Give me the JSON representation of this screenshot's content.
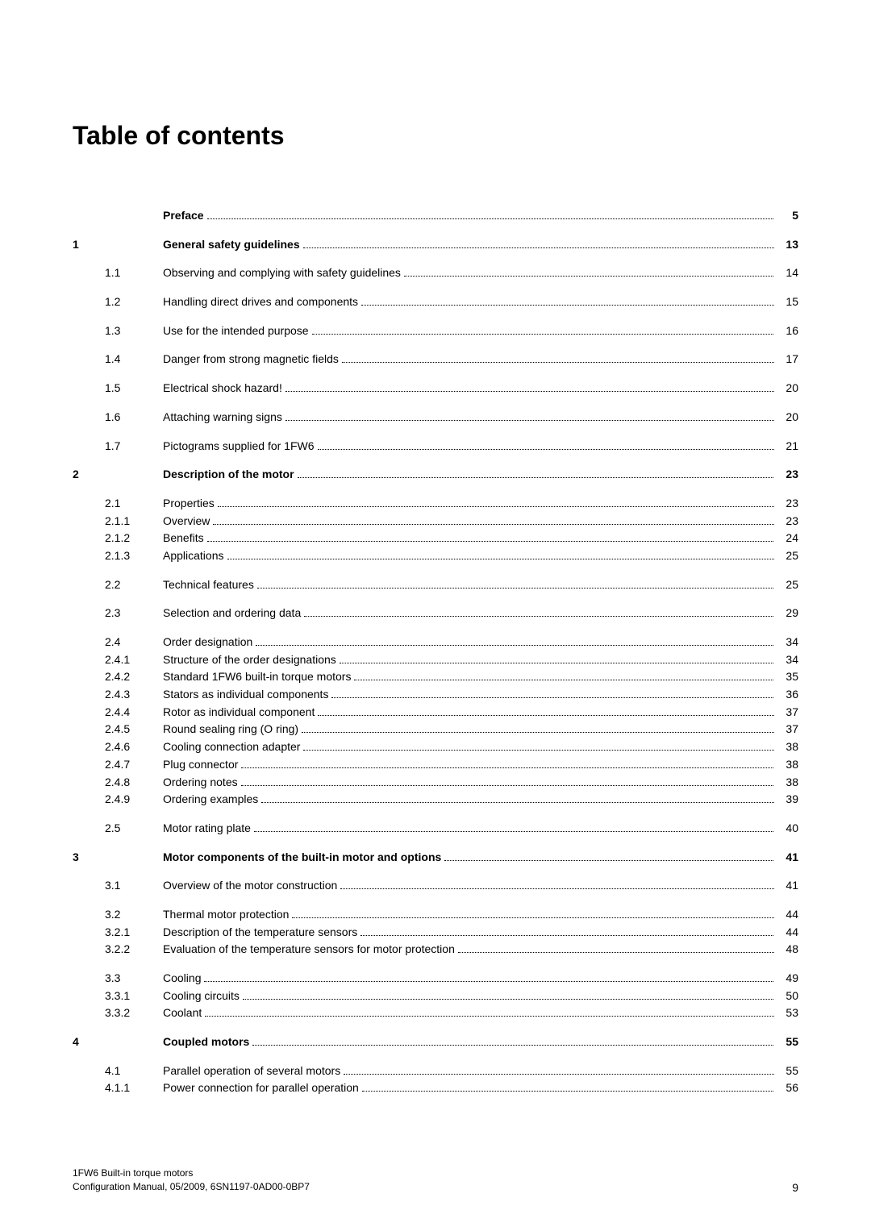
{
  "title": "Table of contents",
  "footer": {
    "line1": "1FW6 Built-in torque motors",
    "line2": "Configuration Manual, 05/2009, 6SN1197-0AD00-0BP7",
    "pagenum": "9"
  },
  "rows": [
    {
      "ch": "",
      "sec": "",
      "title": "Preface",
      "page": "5",
      "bold": true,
      "spaced": false
    },
    {
      "ch": "1",
      "sec": "",
      "title": "General safety guidelines",
      "page": "13",
      "bold": true,
      "spaced": true
    },
    {
      "ch": "",
      "sec": "1.1",
      "title": "Observing and complying with safety guidelines",
      "page": "14",
      "bold": false,
      "spaced": true
    },
    {
      "ch": "",
      "sec": "1.2",
      "title": "Handling direct drives and components",
      "page": "15",
      "bold": false,
      "spaced": true
    },
    {
      "ch": "",
      "sec": "1.3",
      "title": "Use for the intended purpose",
      "page": "16",
      "bold": false,
      "spaced": true
    },
    {
      "ch": "",
      "sec": "1.4",
      "title": "Danger from strong magnetic fields",
      "page": "17",
      "bold": false,
      "spaced": true
    },
    {
      "ch": "",
      "sec": "1.5",
      "title": "Electrical shock hazard!",
      "page": "20",
      "bold": false,
      "spaced": true
    },
    {
      "ch": "",
      "sec": "1.6",
      "title": "Attaching warning signs",
      "page": "20",
      "bold": false,
      "spaced": true
    },
    {
      "ch": "",
      "sec": "1.7",
      "title": "Pictograms supplied for 1FW6",
      "page": "21",
      "bold": false,
      "spaced": true
    },
    {
      "ch": "2",
      "sec": "",
      "title": "Description of the motor",
      "page": "23",
      "bold": true,
      "spaced": true
    },
    {
      "ch": "",
      "sec": "2.1",
      "title": "Properties",
      "page": "23",
      "bold": false,
      "spaced": true
    },
    {
      "ch": "",
      "sec": "2.1.1",
      "title": "Overview",
      "page": "23",
      "bold": false,
      "spaced": false
    },
    {
      "ch": "",
      "sec": "2.1.2",
      "title": "Benefits",
      "page": "24",
      "bold": false,
      "spaced": false
    },
    {
      "ch": "",
      "sec": "2.1.3",
      "title": "Applications",
      "page": "25",
      "bold": false,
      "spaced": false
    },
    {
      "ch": "",
      "sec": "2.2",
      "title": "Technical features",
      "page": "25",
      "bold": false,
      "spaced": true
    },
    {
      "ch": "",
      "sec": "2.3",
      "title": "Selection and ordering data",
      "page": "29",
      "bold": false,
      "spaced": true
    },
    {
      "ch": "",
      "sec": "2.4",
      "title": "Order designation",
      "page": "34",
      "bold": false,
      "spaced": true
    },
    {
      "ch": "",
      "sec": "2.4.1",
      "title": "Structure of the order designations",
      "page": "34",
      "bold": false,
      "spaced": false
    },
    {
      "ch": "",
      "sec": "2.4.2",
      "title": "Standard 1FW6 built-in torque motors",
      "page": "35",
      "bold": false,
      "spaced": false
    },
    {
      "ch": "",
      "sec": "2.4.3",
      "title": "Stators as individual components",
      "page": "36",
      "bold": false,
      "spaced": false
    },
    {
      "ch": "",
      "sec": "2.4.4",
      "title": "Rotor as individual component",
      "page": "37",
      "bold": false,
      "spaced": false
    },
    {
      "ch": "",
      "sec": "2.4.5",
      "title": "Round sealing ring (O ring)",
      "page": "37",
      "bold": false,
      "spaced": false
    },
    {
      "ch": "",
      "sec": "2.4.6",
      "title": "Cooling connection adapter",
      "page": "38",
      "bold": false,
      "spaced": false
    },
    {
      "ch": "",
      "sec": "2.4.7",
      "title": "Plug connector",
      "page": "38",
      "bold": false,
      "spaced": false
    },
    {
      "ch": "",
      "sec": "2.4.8",
      "title": "Ordering notes",
      "page": "38",
      "bold": false,
      "spaced": false
    },
    {
      "ch": "",
      "sec": "2.4.9",
      "title": "Ordering examples",
      "page": "39",
      "bold": false,
      "spaced": false
    },
    {
      "ch": "",
      "sec": "2.5",
      "title": "Motor rating plate",
      "page": "40",
      "bold": false,
      "spaced": true
    },
    {
      "ch": "3",
      "sec": "",
      "title": "Motor components of the built-in motor and options",
      "page": "41",
      "bold": true,
      "spaced": true
    },
    {
      "ch": "",
      "sec": "3.1",
      "title": "Overview of the motor construction",
      "page": "41",
      "bold": false,
      "spaced": true
    },
    {
      "ch": "",
      "sec": "3.2",
      "title": "Thermal motor protection",
      "page": "44",
      "bold": false,
      "spaced": true
    },
    {
      "ch": "",
      "sec": "3.2.1",
      "title": "Description of the temperature sensors",
      "page": "44",
      "bold": false,
      "spaced": false
    },
    {
      "ch": "",
      "sec": "3.2.2",
      "title": "Evaluation of the temperature sensors for motor protection",
      "page": "48",
      "bold": false,
      "spaced": false
    },
    {
      "ch": "",
      "sec": "3.3",
      "title": "Cooling",
      "page": "49",
      "bold": false,
      "spaced": true
    },
    {
      "ch": "",
      "sec": "3.3.1",
      "title": "Cooling circuits",
      "page": "50",
      "bold": false,
      "spaced": false
    },
    {
      "ch": "",
      "sec": "3.3.2",
      "title": "Coolant",
      "page": "53",
      "bold": false,
      "spaced": false
    },
    {
      "ch": "4",
      "sec": "",
      "title": "Coupled motors",
      "page": "55",
      "bold": true,
      "spaced": true
    },
    {
      "ch": "",
      "sec": "4.1",
      "title": "Parallel operation of several motors",
      "page": "55",
      "bold": false,
      "spaced": true
    },
    {
      "ch": "",
      "sec": "4.1.1",
      "title": "Power connection for parallel operation",
      "page": "56",
      "bold": false,
      "spaced": false
    }
  ]
}
